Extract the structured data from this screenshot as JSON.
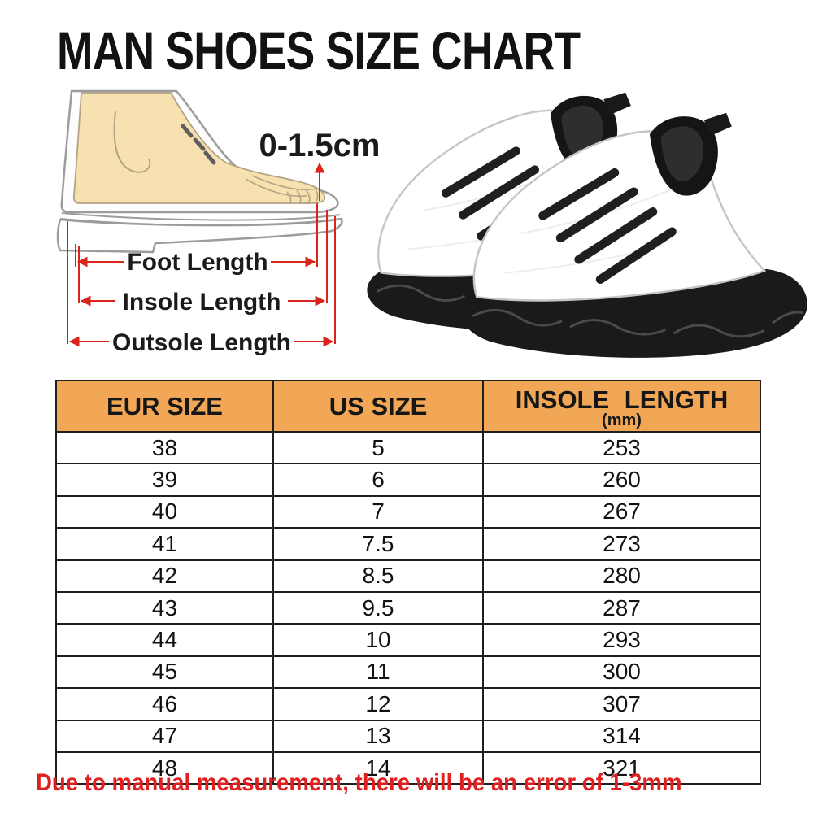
{
  "page": {
    "title": "MAN SHOES SIZE CHART"
  },
  "diagram": {
    "toe_gap_label": "0-1.5cm",
    "labels": {
      "foot": "Foot Length",
      "insole": "Insole Length",
      "outsole": "Outsole Length"
    },
    "colors": {
      "foot_fill": "#F8E1B0",
      "sketch_outline": "#9C9C9C",
      "arrow_red": "#D9251D"
    }
  },
  "photo": {
    "description": "pair of white knit sneakers with black laces, black collars and black wave soles"
  },
  "chart_data": {
    "type": "table",
    "title": "MAN SHOES SIZE CHART",
    "columns": [
      "EUR SIZE",
      "US SIZE",
      "INSOLE LENGTH (mm)"
    ],
    "header": {
      "eur": "EUR SIZE",
      "us": "US SIZE",
      "insole": "INSOLE LENGTH",
      "insole_unit": "(mm)"
    },
    "header_bg": "#F1A755",
    "rows": [
      [
        "38",
        "5",
        "253"
      ],
      [
        "39",
        "6",
        "260"
      ],
      [
        "40",
        "7",
        "267"
      ],
      [
        "41",
        "7.5",
        "273"
      ],
      [
        "42",
        "8.5",
        "280"
      ],
      [
        "43",
        "9.5",
        "287"
      ],
      [
        "44",
        "10",
        "293"
      ],
      [
        "45",
        "11",
        "300"
      ],
      [
        "46",
        "12",
        "307"
      ],
      [
        "47",
        "13",
        "314"
      ],
      [
        "48",
        "14",
        "321"
      ]
    ]
  },
  "footnote": {
    "text": "Due to manual measurement, there will be an error of 1-3mm",
    "color": "#E02020"
  }
}
